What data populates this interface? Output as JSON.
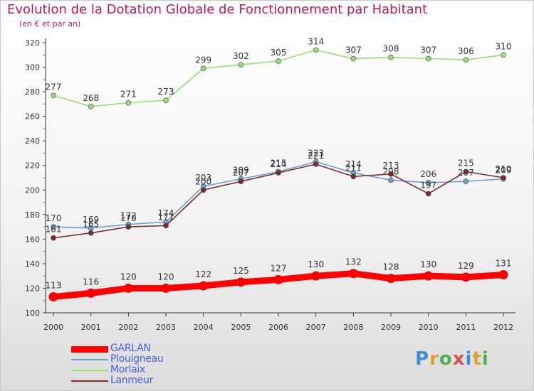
{
  "title": "Evolution de la Dotation Globale de Fonctionnement par Habitant",
  "subtitle": "(en € et par an)",
  "logo_text": "Proxiti",
  "chart_data": {
    "type": "line",
    "x": [
      2000,
      2001,
      2002,
      2003,
      2004,
      2005,
      2006,
      2007,
      2008,
      2009,
      2010,
      2011,
      2012
    ],
    "ylim": [
      100,
      320
    ],
    "yticks": [
      100,
      120,
      140,
      160,
      180,
      200,
      220,
      240,
      260,
      280,
      300,
      320
    ],
    "grid": false,
    "legend": "bottom-left",
    "series": [
      {
        "name": "GARLAN",
        "color": "#ff0000",
        "values": [
          113,
          116,
          120,
          120,
          122,
          125,
          127,
          130,
          132,
          128,
          130,
          129,
          131
        ]
      },
      {
        "name": "Plouigneau",
        "color": "#6fa0cf",
        "values": [
          170,
          169,
          172,
          174,
          203,
          209,
          215,
          223,
          214,
          208,
          206,
          207,
          209
        ]
      },
      {
        "name": "Morlaix",
        "color": "#99dd77",
        "values": [
          277,
          268,
          271,
          273,
          299,
          302,
          305,
          314,
          307,
          308,
          307,
          306,
          310
        ]
      },
      {
        "name": "Lanmeur",
        "color": "#7b2d2d",
        "values": [
          161,
          165,
          170,
          171,
          200,
          207,
          214,
          221,
          211,
          213,
          197,
          215,
          210
        ]
      }
    ]
  }
}
